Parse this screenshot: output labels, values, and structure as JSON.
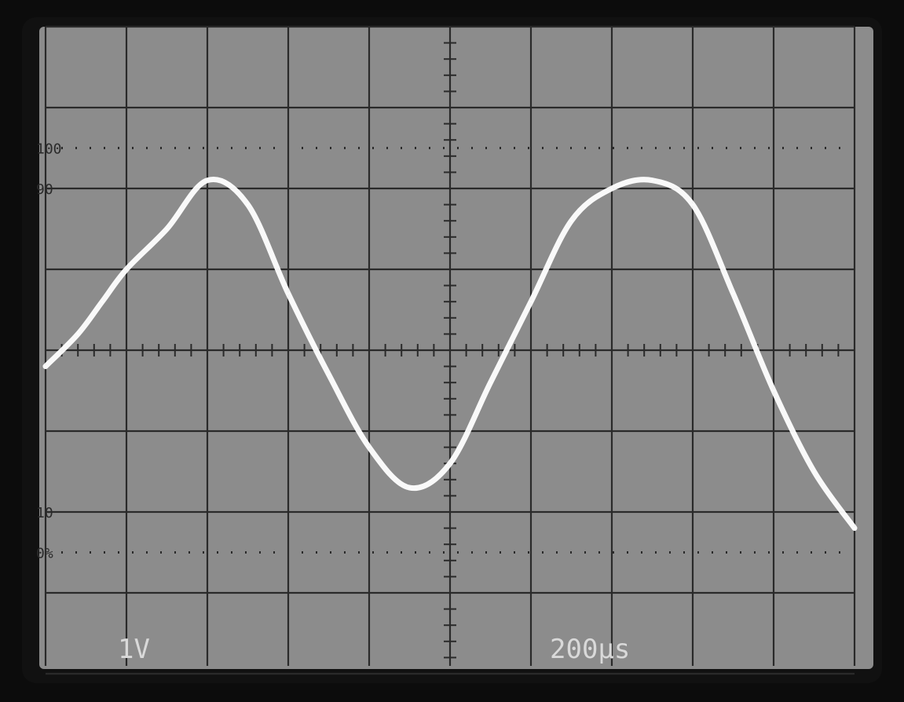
{
  "screen": {
    "volts_div_label": "1V",
    "time_div_label": "200µs",
    "graticule_labels": [
      "100",
      "90",
      "10",
      "0%"
    ],
    "colors": {
      "bezel": "#0c0c0c",
      "screen": "#8c8c8c",
      "grid": "#2a2a2a",
      "trace": "#ffffff",
      "label": "#d9d9d9"
    }
  },
  "chart_data": {
    "type": "line",
    "title": "",
    "xlabel": "",
    "ylabel": "",
    "divisions": {
      "x": 10,
      "y": 8
    },
    "volts_per_div": 1,
    "time_per_div_us": 200,
    "xlim": [
      -1000,
      1000
    ],
    "ylim": [
      -4,
      4
    ],
    "grid": true,
    "series": [
      {
        "role": "main-trace",
        "x": [
          -1000,
          -920,
          -860,
          -800,
          -700,
          -600,
          -500,
          -400,
          -300,
          -200,
          -100,
          0,
          100,
          200,
          300,
          400,
          500,
          600,
          700,
          800,
          900,
          1000
        ],
        "y": [
          -0.2,
          0.2,
          0.6,
          1.0,
          1.5,
          2.1,
          1.8,
          0.7,
          -0.3,
          -1.2,
          -1.7,
          -1.4,
          -0.4,
          0.6,
          1.6,
          2.0,
          2.1,
          1.8,
          0.7,
          -0.5,
          -1.5,
          -2.2
        ]
      }
    ]
  }
}
